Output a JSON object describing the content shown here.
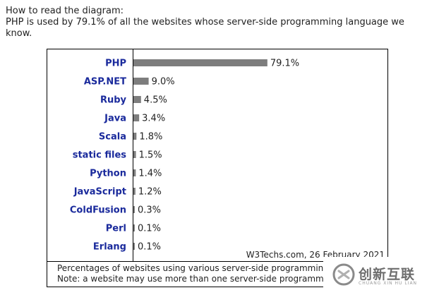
{
  "intro": {
    "heading": "How to read the diagram:",
    "line2": "PHP is used by 79.1% of all the websites whose server-side programming language we",
    "line3": "know."
  },
  "chart_data": {
    "type": "bar",
    "orientation": "horizontal",
    "categories": [
      "PHP",
      "ASP.NET",
      "Ruby",
      "Java",
      "Scala",
      "static files",
      "Python",
      "JavaScript",
      "ColdFusion",
      "Perl",
      "Erlang"
    ],
    "values": [
      79.1,
      9.0,
      4.5,
      3.4,
      1.8,
      1.5,
      1.4,
      1.2,
      0.3,
      0.1,
      0.1
    ],
    "value_labels": [
      "79.1%",
      "9.0%",
      "4.5%",
      "3.4%",
      "1.8%",
      "1.5%",
      "1.4%",
      "1.2%",
      "0.3%",
      "0.1%",
      "0.1%"
    ],
    "unit": "%",
    "xlim": [
      0,
      100
    ],
    "grid": false,
    "legend": "none",
    "colors": {
      "bar": "#7d7d7d",
      "category_label": "#1a2a9c"
    }
  },
  "source": "W3Techs.com, 26 February 2021",
  "caption": {
    "line1": "Percentages of websites using various server-side programming languages",
    "line2": "Note: a website may use more than one server-side programming language"
  },
  "watermark": {
    "text_cn": "创新互联",
    "text_en": "CHUANG XIN HU LIAN"
  }
}
